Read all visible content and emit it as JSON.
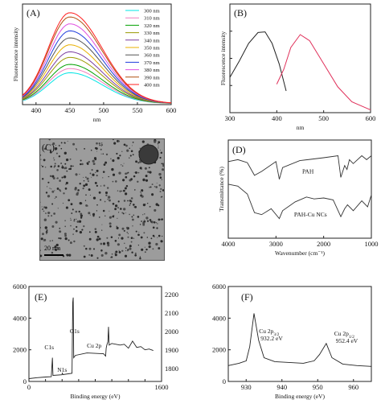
{
  "panels": {
    "A": {
      "label": "(A)"
    },
    "B": {
      "label": "(B)"
    },
    "C": {
      "label": "(C)",
      "scale_bar": "20 nm"
    },
    "D": {
      "label": "(D)"
    },
    "E": {
      "label": "(E)"
    },
    "F": {
      "label": "(F)"
    }
  },
  "chart_data": [
    {
      "panel": "A",
      "type": "line",
      "xlabel": "nm",
      "ylabel": "Fluorescence intensity",
      "xlim": [
        380,
        600
      ],
      "x_ticks": [
        "400",
        "450",
        "500",
        "550",
        "600"
      ],
      "peak_x": 450,
      "series": [
        {
          "name": "300 nm",
          "color": "#00e5e5",
          "peak": 2200
        },
        {
          "name": "310 nm",
          "color": "#f07fbf",
          "peak": 2500
        },
        {
          "name": "320 nm",
          "color": "#00a000",
          "peak": 2800
        },
        {
          "name": "330 nm",
          "color": "#9a9a00",
          "peak": 3300
        },
        {
          "name": "340 nm",
          "color": "#7b3fa0",
          "peak": 3700
        },
        {
          "name": "350 nm",
          "color": "#e8b000",
          "peak": 4200
        },
        {
          "name": "360 nm",
          "color": "#555555",
          "peak": 4700
        },
        {
          "name": "370 nm",
          "color": "#1e3cdc",
          "peak": 5200
        },
        {
          "name": "380 nm",
          "color": "#e050e0",
          "peak": 5700
        },
        {
          "name": "390 nm",
          "color": "#b05010",
          "peak": 6200
        },
        {
          "name": "400 nm",
          "color": "#ff2020",
          "peak": 6500
        }
      ]
    },
    {
      "panel": "B",
      "type": "line",
      "xlabel": "nm",
      "ylabel": "Fluorescence intensity",
      "xlim": [
        300,
        600
      ],
      "ylim": [
        0,
        8000
      ],
      "x_ticks": [
        "300",
        "400",
        "500",
        "600"
      ],
      "y_ticks": [
        "0",
        "2000",
        "4000",
        "6000",
        "8000"
      ],
      "series": [
        {
          "color": "#222222",
          "points": [
            [
              300,
              2600
            ],
            [
              320,
              3800
            ],
            [
              340,
              5100
            ],
            [
              360,
              5900
            ],
            [
              375,
              5950
            ],
            [
              390,
              5100
            ],
            [
              405,
              3600
            ],
            [
              420,
              1600
            ]
          ]
        },
        {
          "color": "#e0305a",
          "points": [
            [
              400,
              2100
            ],
            [
              415,
              3200
            ],
            [
              430,
              4800
            ],
            [
              450,
              5750
            ],
            [
              470,
              5300
            ],
            [
              500,
              3600
            ],
            [
              530,
              1900
            ],
            [
              560,
              800
            ],
            [
              600,
              200
            ]
          ]
        }
      ]
    },
    {
      "panel": "D",
      "type": "line",
      "xlabel": "Wavenumber (cm⁻¹)",
      "ylabel": "Transmittance (%)",
      "xlim": [
        4000,
        1000
      ],
      "x_ticks": [
        "4000",
        "3000",
        "2000",
        "1000"
      ],
      "series": [
        {
          "name": "PAH",
          "color": "#333333",
          "points": [
            [
              4000,
              0.78
            ],
            [
              3800,
              0.8
            ],
            [
              3600,
              0.77
            ],
            [
              3450,
              0.64
            ],
            [
              3300,
              0.68
            ],
            [
              3000,
              0.78
            ],
            [
              2930,
              0.6
            ],
            [
              2860,
              0.72
            ],
            [
              2500,
              0.79
            ],
            [
              2000,
              0.82
            ],
            [
              1700,
              0.84
            ],
            [
              1640,
              0.62
            ],
            [
              1560,
              0.74
            ],
            [
              1510,
              0.7
            ],
            [
              1460,
              0.8
            ],
            [
              1380,
              0.76
            ],
            [
              1200,
              0.84
            ],
            [
              1100,
              0.8
            ],
            [
              1000,
              0.84
            ]
          ]
        },
        {
          "name": "PAH-Cu NCs",
          "color": "#333333",
          "points": [
            [
              4000,
              0.55
            ],
            [
              3800,
              0.53
            ],
            [
              3600,
              0.45
            ],
            [
              3450,
              0.26
            ],
            [
              3300,
              0.24
            ],
            [
              3100,
              0.3
            ],
            [
              2930,
              0.2
            ],
            [
              2860,
              0.28
            ],
            [
              2600,
              0.37
            ],
            [
              2360,
              0.42
            ],
            [
              2200,
              0.4
            ],
            [
              2000,
              0.41
            ],
            [
              1800,
              0.39
            ],
            [
              1640,
              0.22
            ],
            [
              1560,
              0.3
            ],
            [
              1500,
              0.34
            ],
            [
              1380,
              0.28
            ],
            [
              1200,
              0.38
            ],
            [
              1080,
              0.32
            ],
            [
              1000,
              0.44
            ]
          ]
        }
      ]
    },
    {
      "panel": "E",
      "type": "line",
      "xlabel": "Binding energy (eV)",
      "xlim": [
        0,
        1600
      ],
      "ylim": [
        0,
        6000
      ],
      "x_ticks": [
        "0",
        "200",
        "400",
        "600",
        "800",
        "1000",
        "1200",
        "1400",
        "1600"
      ],
      "y_ticks": [
        "0",
        "2000",
        "4000",
        "6000"
      ],
      "right_y_ticks": [
        "1800",
        "1900",
        "2000",
        "2100",
        "2200"
      ],
      "annotations": [
        {
          "text": "O1s",
          "x": 531
        },
        {
          "text": "C1s",
          "x": 285
        },
        {
          "text": "N1s",
          "x": 400
        },
        {
          "text": "Cu 2p",
          "x": 932
        }
      ],
      "points": [
        [
          0,
          180
        ],
        [
          100,
          240
        ],
        [
          200,
          280
        ],
        [
          270,
          300
        ],
        [
          283,
          1500
        ],
        [
          290,
          380
        ],
        [
          398,
          420
        ],
        [
          402,
          520
        ],
        [
          410,
          430
        ],
        [
          520,
          520
        ],
        [
          528,
          5000
        ],
        [
          534,
          5300
        ],
        [
          540,
          1500
        ],
        [
          560,
          1650
        ],
        [
          700,
          1800
        ],
        [
          900,
          1750
        ],
        [
          925,
          1600
        ],
        [
          932,
          2100
        ],
        [
          940,
          2300
        ],
        [
          952,
          2500
        ],
        [
          960,
          3450
        ],
        [
          968,
          2300
        ],
        [
          1000,
          2400
        ],
        [
          1100,
          2300
        ],
        [
          1150,
          2350
        ],
        [
          1200,
          2100
        ],
        [
          1250,
          2550
        ],
        [
          1300,
          2150
        ],
        [
          1350,
          2200
        ],
        [
          1400,
          2000
        ],
        [
          1450,
          2050
        ],
        [
          1500,
          1950
        ]
      ]
    },
    {
      "panel": "F",
      "type": "line",
      "xlabel": "Binding energy (eV)",
      "xlim": [
        925,
        965
      ],
      "ylim": [
        0,
        6000
      ],
      "x_ticks": [
        "930",
        "940",
        "950",
        "960"
      ],
      "y_ticks": [
        "0",
        "2000",
        "4000",
        "6000"
      ],
      "annotations": [
        {
          "text": "Cu 2p",
          "sub": "3/2",
          "value": "932.2 eV",
          "x": 932.2
        },
        {
          "text": "Cu 2p",
          "sub": "1/2",
          "value": "952.4 eV",
          "x": 952.4
        }
      ],
      "points": [
        [
          925,
          1000
        ],
        [
          928,
          1150
        ],
        [
          930,
          1300
        ],
        [
          931,
          2200
        ],
        [
          932.2,
          4300
        ],
        [
          933.5,
          2600
        ],
        [
          935,
          1500
        ],
        [
          938,
          1250
        ],
        [
          942,
          1200
        ],
        [
          946,
          1150
        ],
        [
          949,
          1300
        ],
        [
          950.5,
          1700
        ],
        [
          952.4,
          2400
        ],
        [
          954,
          1500
        ],
        [
          957,
          1100
        ],
        [
          961,
          1000
        ],
        [
          965,
          950
        ]
      ]
    }
  ]
}
